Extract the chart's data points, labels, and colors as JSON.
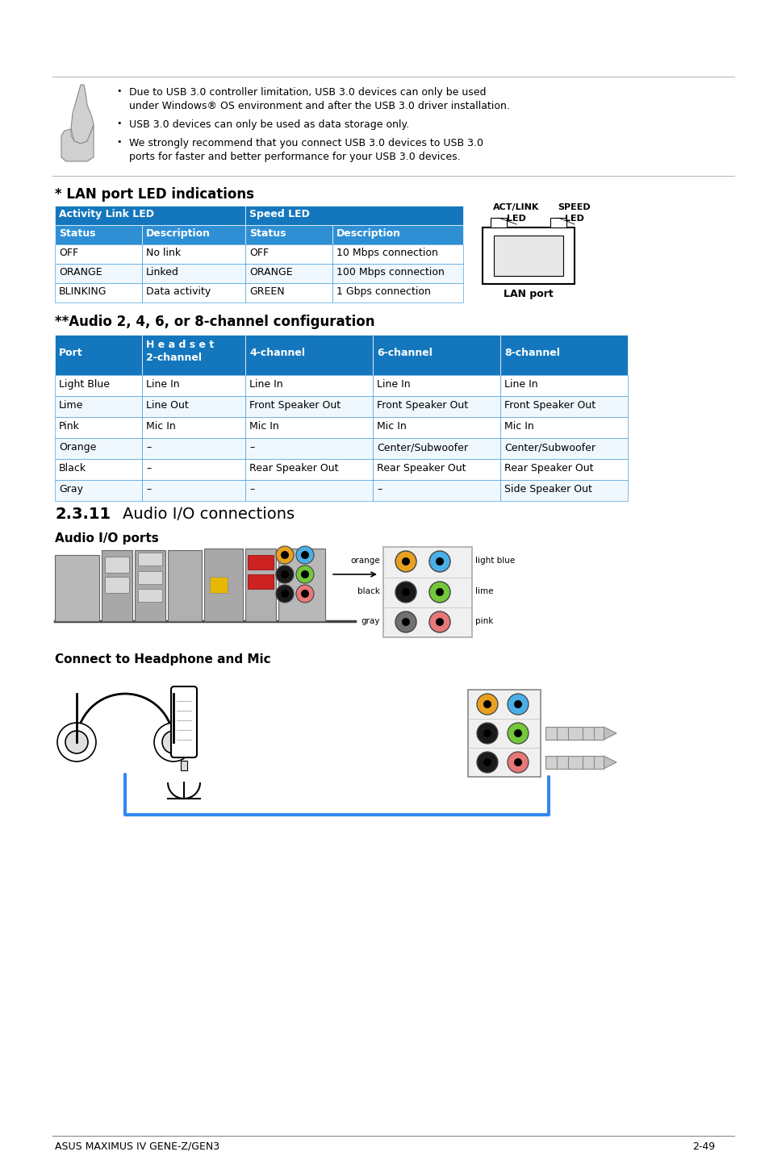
{
  "bg_color": "#ffffff",
  "note_bullets": [
    [
      "Due to USB 3.0 controller limitation, USB 3.0 devices can only be used",
      "under Windows® OS environment and after the USB 3.0 driver installation."
    ],
    [
      "USB 3.0 devices can only be used as data storage only."
    ],
    [
      "We strongly recommend that you connect USB 3.0 devices to USB 3.0",
      "ports for faster and better performance for your USB 3.0 devices."
    ]
  ],
  "lan_title": "* LAN port LED indications",
  "lan_table_header1": "Activity Link LED",
  "lan_table_header2": "Speed LED",
  "lan_col_headers": [
    "Status",
    "Description",
    "Status",
    "Description"
  ],
  "lan_rows": [
    [
      "OFF",
      "No link",
      "OFF",
      "10 Mbps connection"
    ],
    [
      "ORANGE",
      "Linked",
      "ORANGE",
      "100 Mbps connection"
    ],
    [
      "BLINKING",
      "Data activity",
      "GREEN",
      "1 Gbps connection"
    ]
  ],
  "audio_config_title": "**Audio 2, 4, 6, or 8-channel configuration",
  "audio_col_headers": [
    "Port",
    "H e a d s e t\n2-channel",
    "4-channel",
    "6-channel",
    "8-channel"
  ],
  "audio_rows": [
    [
      "Light Blue",
      "Line In",
      "Line In",
      "Line In",
      "Line In"
    ],
    [
      "Lime",
      "Line Out",
      "Front Speaker Out",
      "Front Speaker Out",
      "Front Speaker Out"
    ],
    [
      "Pink",
      "Mic In",
      "Mic In",
      "Mic In",
      "Mic In"
    ],
    [
      "Orange",
      "–",
      "–",
      "Center/Subwoofer",
      "Center/Subwoofer"
    ],
    [
      "Black",
      "–",
      "Rear Speaker Out",
      "Rear Speaker Out",
      "Rear Speaker Out"
    ],
    [
      "Gray",
      "–",
      "–",
      "–",
      "Side Speaker Out"
    ]
  ],
  "section_title": "2.3.11",
  "section_subtitle": "Audio I/O connections",
  "audio_io_title": "Audio I/O ports",
  "connect_title": "Connect to Headphone and Mic",
  "footer_left": "ASUS MAXIMUS IV GENE-Z/GEN3",
  "footer_right": "2-49",
  "header_bg": "#1477bd",
  "subheader_bg": "#2e8fd4",
  "white": "#ffffff",
  "border_color": "#2e8fd4",
  "table_alt_row": "#f0f8ff",
  "port_orange": "#E8A020",
  "port_lightblue": "#4AAFE8",
  "port_black": "#1a1a1a",
  "port_lime": "#72C83A",
  "port_gray": "#707070",
  "port_pink": "#E87878",
  "cable_blue": "#3388ee"
}
